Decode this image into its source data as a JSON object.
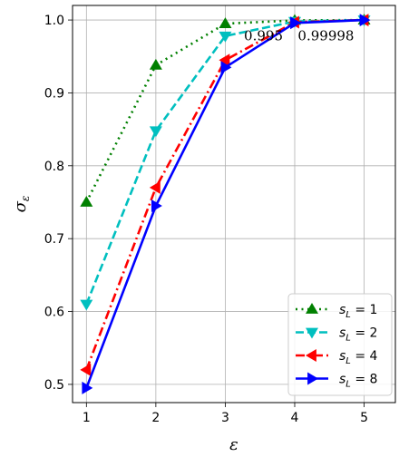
{
  "chart_data": {
    "type": "line",
    "xlabel": "ε",
    "ylabel": "σ",
    "ylabel_sub": "ε",
    "xlim": [
      0.8,
      5.45
    ],
    "ylim": [
      0.475,
      1.02
    ],
    "x_ticks": [
      1,
      2,
      3,
      4,
      5
    ],
    "y_ticks": [
      0.5,
      0.6,
      0.7,
      0.8,
      0.9,
      1.0
    ],
    "x_tick_labels": [
      "1",
      "2",
      "3",
      "4",
      "5"
    ],
    "y_tick_labels": [
      "0.5",
      "0.6",
      "0.7",
      "0.8",
      "0.9",
      "1.0"
    ],
    "grid": true,
    "legend_position": "lower-right",
    "x": [
      1,
      2,
      3,
      4,
      5
    ],
    "series": [
      {
        "name": "s_L = 1",
        "label_main": "s",
        "label_sub": "L",
        "label_rest": " = 1",
        "color": "#008000",
        "linestyle": "dotted",
        "marker": "triangle-up",
        "values": [
          0.75,
          0.938,
          0.995,
          0.9995,
          1.0
        ]
      },
      {
        "name": "s_L = 2",
        "label_main": "s",
        "label_sub": "L",
        "label_rest": " = 2",
        "color": "#00bfbf",
        "linestyle": "dashed",
        "marker": "triangle-down",
        "values": [
          0.61,
          0.848,
          0.978,
          0.998,
          1.0
        ]
      },
      {
        "name": "s_L = 4",
        "label_main": "s",
        "label_sub": "L",
        "label_rest": " = 4",
        "color": "#ff0000",
        "linestyle": "dashdot",
        "marker": "triangle-left",
        "values": [
          0.52,
          0.77,
          0.945,
          0.997,
          1.0
        ]
      },
      {
        "name": "s_L = 8",
        "label_main": "s",
        "label_sub": "L",
        "label_rest": " = 8",
        "color": "#0000ff",
        "linestyle": "solid",
        "marker": "triangle-right",
        "values": [
          0.495,
          0.745,
          0.935,
          0.996,
          1.0
        ]
      }
    ],
    "annotations": [
      {
        "text": "0.995",
        "x": 3.55,
        "y": 0.972
      },
      {
        "text": "0.99998",
        "x": 4.45,
        "y": 0.972
      }
    ]
  }
}
